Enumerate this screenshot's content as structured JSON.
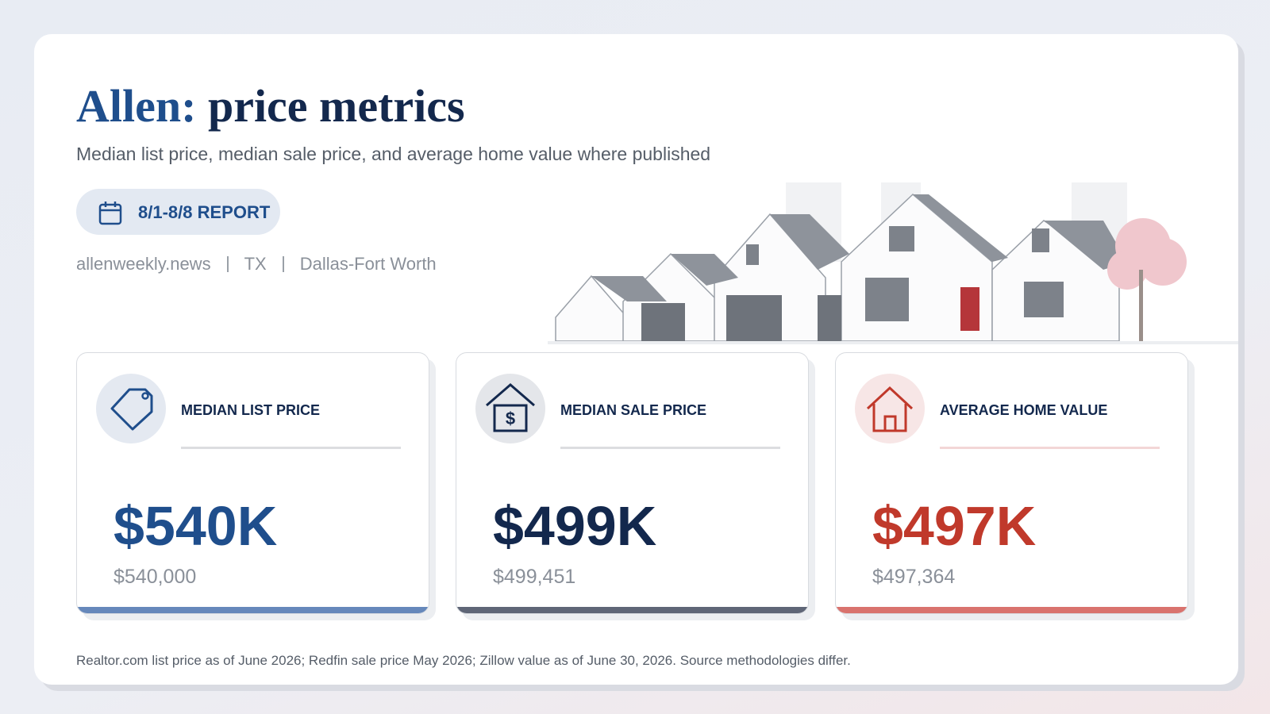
{
  "header": {
    "city": "Allen:",
    "title": "price metrics",
    "subtitle": "Median list price, median sale price, and average home value where published"
  },
  "badge": "8/1-8/8 REPORT",
  "meta": [
    "allenweekly.news",
    "TX",
    "Dallas-Fort Worth"
  ],
  "cards": [
    {
      "label": "MEDIAN LIST PRICE",
      "value": "$540K",
      "detail": "$540,000"
    },
    {
      "label": "MEDIAN SALE PRICE",
      "value": "$499K",
      "detail": "$499,451"
    },
    {
      "label": "AVERAGE HOME VALUE",
      "value": "$497K",
      "detail": "$497,364"
    }
  ],
  "footnote": "Realtor.com list price as of June 2026; Redfin sale price May 2026; Zillow value as of June 30, 2026. Source methodologies differ."
}
